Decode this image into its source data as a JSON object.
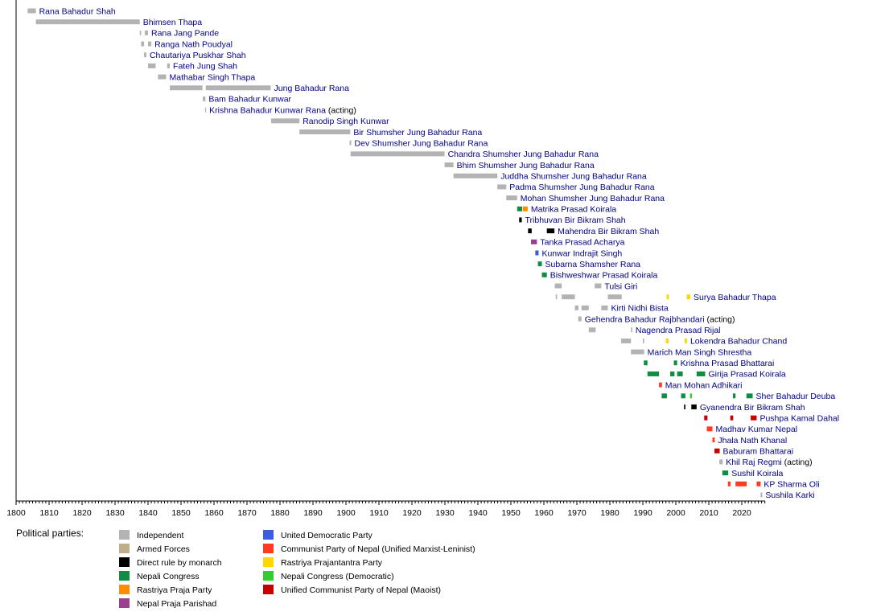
{
  "chart_data": {
    "type": "timeline",
    "x_axis": {
      "xlim": [
        1800,
        2027
      ],
      "ticks": [
        1800,
        1810,
        1820,
        1830,
        1840,
        1850,
        1860,
        1870,
        1880,
        1890,
        1900,
        1910,
        1920,
        1930,
        1940,
        1950,
        1960,
        1970,
        1980,
        1990,
        2000,
        2010,
        2020
      ]
    },
    "legend_title": "Political parties:",
    "parties": [
      {
        "key": "ind",
        "name": "Independent",
        "color": "#b3b3b3"
      },
      {
        "key": "arm",
        "name": "Armed Forces",
        "color": "#bfae8c"
      },
      {
        "key": "mon",
        "name": "Direct rule by monarch",
        "color": "#000000"
      },
      {
        "key": "nc",
        "name": "Nepali Congress",
        "color": "#118c44"
      },
      {
        "key": "rpp",
        "name": "Rastriya Praja Party",
        "color": "#ff8c00"
      },
      {
        "key": "npp",
        "name": "Nepal Praja Parishad",
        "color": "#9a3f8c"
      },
      {
        "key": "udp",
        "name": "United Democratic Party",
        "color": "#3c5ce0"
      },
      {
        "key": "uml",
        "name": "Communist Party of Nepal (Unified Marxist-Leninist)",
        "color": "#ff3b1f"
      },
      {
        "key": "rpj",
        "name": "Rastriya Prajantantra Party",
        "color": "#ffd700"
      },
      {
        "key": "ncd",
        "name": "Nepali Congress (Democratic)",
        "color": "#33cc33"
      },
      {
        "key": "mao",
        "name": "Unified Communist Party of Nepal (Maoist)",
        "color": "#c80000"
      }
    ],
    "rows": [
      {
        "name": "Rana Bahadur Shah",
        "terms": [
          [
            1803.5,
            1806,
            "ind"
          ]
        ]
      },
      {
        "name": "Bhimsen Thapa",
        "terms": [
          [
            1806,
            1837.5,
            "ind"
          ]
        ]
      },
      {
        "name": "Rana Jang Pande",
        "terms": [
          [
            1837.5,
            1837.9,
            "ind"
          ],
          [
            1839,
            1840,
            "ind"
          ]
        ]
      },
      {
        "name": "Ranga Nath Poudyal",
        "terms": [
          [
            1837.9,
            1838.8,
            "ind"
          ],
          [
            1840,
            1841,
            "ind"
          ]
        ]
      },
      {
        "name": "Chautariya Puskhar Shah",
        "terms": [
          [
            1838.8,
            1839.5,
            "ind"
          ]
        ]
      },
      {
        "name": "Fateh Jung Shah",
        "terms": [
          [
            1840,
            1842.3,
            "ind"
          ],
          [
            1845.8,
            1846.6,
            "ind"
          ]
        ]
      },
      {
        "name": "Mathabar Singh Thapa",
        "terms": [
          [
            1843,
            1845.5,
            "ind"
          ]
        ]
      },
      {
        "name": "Jung Bahadur Rana",
        "terms": [
          [
            1846.6,
            1856.5,
            "ind"
          ],
          [
            1857.5,
            1877.2,
            "ind"
          ]
        ]
      },
      {
        "name": "Bam Bahadur Kunwar",
        "terms": [
          [
            1856.6,
            1857.4,
            "ind"
          ]
        ]
      },
      {
        "name": "Krishna Bahadur Kunwar Rana",
        "suffix": "(acting)",
        "terms": [
          [
            1857.3,
            1857.6,
            "ind"
          ]
        ]
      },
      {
        "name": "Ranodip Singh Kunwar",
        "terms": [
          [
            1877.3,
            1885.9,
            "ind"
          ]
        ]
      },
      {
        "name": "Bir Shumsher Jung Bahadur Rana",
        "terms": [
          [
            1885.9,
            1901.3,
            "ind"
          ]
        ]
      },
      {
        "name": "Dev Shumsher Jung Bahadur Rana",
        "terms": [
          [
            1901.1,
            1901.6,
            "ind"
          ]
        ]
      },
      {
        "name": "Chandra Shumsher Jung Bahadur Rana",
        "terms": [
          [
            1901.4,
            1929.9,
            "ind"
          ]
        ]
      },
      {
        "name": "Bhim Shumsher Jung Bahadur Rana",
        "terms": [
          [
            1929.9,
            1932.6,
            "ind"
          ]
        ]
      },
      {
        "name": "Juddha Shumsher Jung Bahadur Rana",
        "terms": [
          [
            1932.6,
            1945.9,
            "ind"
          ]
        ]
      },
      {
        "name": "Padma Shumsher Jung Bahadur Rana",
        "terms": [
          [
            1945.9,
            1948.6,
            "ind"
          ]
        ]
      },
      {
        "name": "Mohan Shumsher Jung Bahadur Rana",
        "terms": [
          [
            1948.6,
            1951.9,
            "ind"
          ]
        ]
      },
      {
        "name": "Matrika Prasad Koirala",
        "terms": [
          [
            1951.9,
            1953.4,
            "nc"
          ],
          [
            1953.6,
            1955.1,
            "rpp"
          ]
        ]
      },
      {
        "name": "Tribhuvan Bir Bikram Shah",
        "terms": [
          [
            1952.5,
            1953.3,
            "mon"
          ]
        ]
      },
      {
        "name": "Mahendra Bir Bikram Shah",
        "terms": [
          [
            1955.2,
            1956.3,
            "mon"
          ],
          [
            1960.9,
            1963.2,
            "mon"
          ]
        ]
      },
      {
        "name": "Tanka Prasad Acharya",
        "terms": [
          [
            1956.1,
            1957.9,
            "npp"
          ]
        ]
      },
      {
        "name": "Kunwar Indrajit Singh",
        "terms": [
          [
            1957.4,
            1958.4,
            "udp"
          ]
        ]
      },
      {
        "name": "Subarna Shamsher Rana",
        "terms": [
          [
            1958.2,
            1959.4,
            "nc"
          ]
        ]
      },
      {
        "name": "Bishweshwar Prasad Koirala",
        "terms": [
          [
            1959.4,
            1960.9,
            "nc"
          ]
        ]
      },
      {
        "name": "Tulsi Giri",
        "terms": [
          [
            1963.3,
            1965.4,
            "ind"
          ],
          [
            1975.4,
            1977.4,
            "ind"
          ]
        ]
      },
      {
        "name": "Surya Bahadur Thapa",
        "terms": [
          [
            1963.6,
            1964,
            "ind"
          ],
          [
            1965.4,
            1969.4,
            "ind"
          ],
          [
            1979.4,
            1983.6,
            "ind"
          ],
          [
            1997.2,
            1997.9,
            "rpj"
          ],
          [
            2003.3,
            2004.4,
            "rpj"
          ]
        ]
      },
      {
        "name": "Kirti Nidhi Bista",
        "terms": [
          [
            1969.4,
            1970.5,
            "ind"
          ],
          [
            1971.4,
            1973.6,
            "ind"
          ],
          [
            1977.4,
            1979.4,
            "ind"
          ]
        ]
      },
      {
        "name": "Gehendra Bahadur Rajbhandari",
        "suffix": "(acting)",
        "terms": [
          [
            1970.4,
            1971.4,
            "ind"
          ]
        ]
      },
      {
        "name": "Nagendra Prasad Rijal",
        "terms": [
          [
            1973.6,
            1975.7,
            "ind"
          ],
          [
            1986.4,
            1986.8,
            "ind"
          ]
        ]
      },
      {
        "name": "Lokendra Bahadur Chand",
        "terms": [
          [
            1983.4,
            1986.4,
            "ind"
          ],
          [
            1990,
            1990.4,
            "ind"
          ],
          [
            1997,
            1997.8,
            "rpj"
          ],
          [
            2002.7,
            2003.4,
            "rpj"
          ]
        ]
      },
      {
        "name": "Marich Man Singh Shrestha",
        "terms": [
          [
            1986.4,
            1990.4,
            "ind"
          ]
        ]
      },
      {
        "name": "Krishna Prasad Bhattarai",
        "terms": [
          [
            1990.3,
            1991.4,
            "nc"
          ],
          [
            1999.4,
            2000.4,
            "nc"
          ]
        ]
      },
      {
        "name": "Girija Prasad Koirala",
        "terms": [
          [
            1991.4,
            1994.9,
            "nc"
          ],
          [
            1998.3,
            1999.6,
            "nc"
          ],
          [
            2000.4,
            2002.1,
            "nc"
          ],
          [
            2006.3,
            2008.9,
            "nc"
          ]
        ]
      },
      {
        "name": "Man Mohan Adhikari",
        "terms": [
          [
            1994.9,
            1995.8,
            "uml"
          ]
        ]
      },
      {
        "name": "Sher Bahadur Deuba",
        "terms": [
          [
            1995.7,
            1997.3,
            "nc"
          ],
          [
            2001.6,
            2002.9,
            "nc"
          ],
          [
            2004.3,
            2004.9,
            "ncd"
          ],
          [
            2017.3,
            2018.1,
            "nc"
          ],
          [
            2021.4,
            2023.3,
            "nc"
          ]
        ]
      },
      {
        "name": "Gyanendra Bir Bikram Shah",
        "terms": [
          [
            2002.5,
            2002.9,
            "mon"
          ],
          [
            2004.7,
            2006.3,
            "mon"
          ]
        ]
      },
      {
        "name": "Pushpa Kamal Dahal",
        "terms": [
          [
            2008.6,
            2009.6,
            "mao"
          ],
          [
            2016.5,
            2017.4,
            "mao"
          ],
          [
            2022.7,
            2024.5,
            "mao"
          ]
        ]
      },
      {
        "name": "Madhav Kumar Nepal",
        "terms": [
          [
            2009.4,
            2011.1,
            "uml"
          ]
        ]
      },
      {
        "name": "Jhala Nath Khanal",
        "terms": [
          [
            2011.1,
            2011.8,
            "uml"
          ]
        ]
      },
      {
        "name": "Baburam Bhattarai",
        "terms": [
          [
            2011.7,
            2013.3,
            "mao"
          ]
        ]
      },
      {
        "name": "Khil Raj Regmi",
        "suffix": "(acting)",
        "terms": [
          [
            2013.2,
            2014.2,
            "ind"
          ]
        ]
      },
      {
        "name": "Sushil Koirala",
        "terms": [
          [
            2014.1,
            2015.9,
            "nc"
          ]
        ]
      },
      {
        "name": "KP Sharma Oli",
        "terms": [
          [
            2015.8,
            2016.6,
            "uml"
          ],
          [
            2018.1,
            2021.5,
            "uml"
          ],
          [
            2024.5,
            2025.7,
            "uml"
          ]
        ]
      },
      {
        "name": "Sushila Karki",
        "terms": [
          [
            2025.7,
            2026.2,
            "ind"
          ]
        ]
      }
    ]
  }
}
